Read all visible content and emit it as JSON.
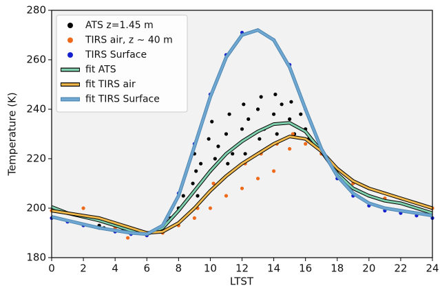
{
  "chart_data": {
    "type": "scatter",
    "xlabel": "LTST",
    "ylabel": "Temperature (K)",
    "xlim": [
      0,
      24
    ],
    "ylim": [
      180,
      280
    ],
    "xticks": [
      0,
      2,
      4,
      6,
      8,
      10,
      12,
      14,
      16,
      18,
      20,
      22,
      24
    ],
    "yticks": [
      180,
      200,
      220,
      240,
      260,
      280
    ],
    "legend": "upper left",
    "series": [
      {
        "name": "ATS z=1.45 m",
        "color": "#000000",
        "style": "points",
        "x": [
          0.1,
          0.3,
          3.0,
          3.3,
          4.5,
          6.0,
          7.0,
          7.5,
          8.0,
          8.3,
          8.9,
          9.0,
          9.1,
          9.2,
          9.4,
          9.9,
          10.0,
          10.1,
          10.3,
          10.5,
          11.0,
          11.1,
          11.2,
          11.4,
          12.0,
          12.1,
          12.2,
          12.4,
          13.0,
          13.1,
          13.2,
          13.4,
          14.0,
          14.1,
          14.2,
          14.5,
          15.0,
          15.1,
          15.3,
          15.7,
          16.0,
          16.2
        ],
        "values": [
          200,
          199,
          193,
          192,
          191,
          190,
          193,
          196,
          200,
          205,
          210,
          222,
          215,
          205,
          218,
          228,
          215,
          235,
          220,
          225,
          230,
          218,
          238,
          222,
          232,
          242,
          222,
          236,
          240,
          228,
          245,
          232,
          238,
          246,
          230,
          242,
          236,
          243,
          230,
          238,
          232,
          228
        ]
      },
      {
        "name": "TIRS air, z ∼ 40 m",
        "color": "#ee6a1a",
        "style": "points",
        "x": [
          0,
          1,
          2,
          3,
          4,
          4.8,
          5,
          6,
          7,
          8,
          9.0,
          9.2,
          10.0,
          10.2,
          11.0,
          11.2,
          12.0,
          12.2,
          13.0,
          13.2,
          14.0,
          14.2,
          15.0,
          15.2,
          16,
          17,
          18,
          19,
          20,
          21,
          22,
          23,
          24
        ],
        "values": [
          199,
          198,
          200,
          195,
          192,
          188,
          190,
          189,
          190,
          193,
          196,
          200,
          200,
          210,
          205,
          214,
          208,
          218,
          212,
          222,
          215,
          226,
          224,
          230,
          226,
          222,
          215,
          210,
          205,
          204,
          204,
          202,
          200
        ]
      },
      {
        "name": "TIRS Surface",
        "color": "#1420d0",
        "style": "points",
        "x": [
          0,
          1,
          2,
          3,
          4,
          5,
          6,
          7,
          8,
          9,
          10,
          11,
          12,
          13,
          14,
          15,
          16,
          17,
          18,
          19,
          20,
          21,
          22,
          23,
          24
        ],
        "values": [
          196,
          194.5,
          193,
          192,
          190.5,
          189.5,
          189,
          192,
          206,
          226,
          246,
          262,
          271,
          272,
          268,
          258,
          240,
          223,
          212,
          205,
          201,
          199,
          198,
          197,
          196
        ]
      },
      {
        "name": "fit ATS",
        "color": "#7fd1ae",
        "style": "fit",
        "x": [
          0,
          1,
          2,
          3,
          4,
          5,
          6,
          7,
          8,
          9,
          10,
          11,
          12,
          13,
          14,
          15,
          16,
          17,
          18,
          19,
          20,
          21,
          22,
          23,
          24
        ],
        "values": [
          200.5,
          198,
          196.5,
          195,
          193,
          191,
          189.5,
          192,
          199,
          207,
          215,
          222,
          227,
          231,
          234,
          234.5,
          231,
          223,
          214,
          208,
          205,
          203,
          202,
          200,
          198
        ]
      },
      {
        "name": "fit TIRS air",
        "color": "#f0b84a",
        "style": "fit",
        "x": [
          0,
          1,
          2,
          3,
          4,
          5,
          6,
          7,
          8,
          9,
          10,
          11,
          12,
          13,
          14,
          15,
          16,
          17,
          18,
          19,
          20,
          21,
          22,
          23,
          24
        ],
        "values": [
          199,
          198,
          197,
          196,
          194,
          192,
          190,
          190.5,
          194,
          200,
          207,
          213,
          218,
          222,
          226,
          229,
          228,
          223,
          216,
          211,
          208,
          206,
          204,
          202,
          200
        ]
      },
      {
        "name": "fit TIRS Surface",
        "color": "#6ea8d2",
        "style": "fit",
        "x": [
          0,
          1,
          2,
          3,
          4,
          5,
          6,
          7,
          8,
          9,
          10,
          11,
          12,
          13,
          14,
          15,
          16,
          17,
          18,
          19,
          20,
          21,
          22,
          23,
          24
        ],
        "values": [
          196.5,
          195,
          193.5,
          192,
          191,
          190,
          189.5,
          193,
          205,
          225,
          245,
          261,
          270,
          272,
          268,
          257,
          240,
          224,
          213,
          206,
          202,
          200,
          199,
          198,
          197
        ]
      }
    ]
  }
}
